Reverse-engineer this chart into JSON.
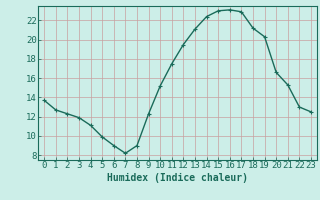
{
  "x": [
    0,
    1,
    2,
    3,
    4,
    5,
    6,
    7,
    8,
    9,
    10,
    11,
    12,
    13,
    14,
    15,
    16,
    17,
    18,
    19,
    20,
    21,
    22,
    23
  ],
  "y": [
    13.7,
    12.7,
    12.3,
    11.9,
    11.1,
    9.9,
    9.0,
    8.2,
    9.0,
    12.3,
    15.2,
    17.5,
    19.5,
    21.1,
    22.4,
    23.0,
    23.1,
    22.9,
    21.2,
    20.3,
    16.6,
    15.3,
    13.0,
    12.5
  ],
  "line_color": "#1a6b5a",
  "marker": "+",
  "marker_size": 3.5,
  "linewidth": 1.0,
  "xlabel": "Humidex (Indice chaleur)",
  "xlabel_fontsize": 7,
  "xlim": [
    -0.5,
    23.5
  ],
  "ylim": [
    7.5,
    23.5
  ],
  "yticks": [
    8,
    10,
    12,
    14,
    16,
    18,
    20,
    22
  ],
  "xticks": [
    0,
    1,
    2,
    3,
    4,
    5,
    6,
    7,
    8,
    9,
    10,
    11,
    12,
    13,
    14,
    15,
    16,
    17,
    18,
    19,
    20,
    21,
    22,
    23
  ],
  "grid_color": "#c8a0a0",
  "bg_color": "#cceee8",
  "tick_color": "#1a6b5a",
  "tick_fontsize": 6.5,
  "spine_color": "#1a6b5a"
}
